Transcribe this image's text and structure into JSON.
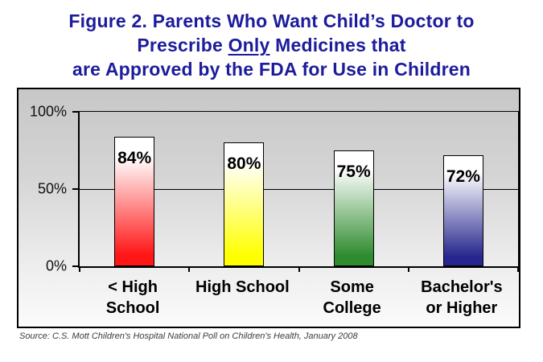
{
  "title": {
    "line1": "Figure 2. Parents Who Want Child’s Doctor to",
    "line2_pre": "Prescribe ",
    "line2_underlined": "Only",
    "line2_post": " Medicines that",
    "line3": "are Approved by the FDA for Use in Children",
    "color": "#1c1c9c"
  },
  "source": "Source: C.S. Mott Children's Hospital National Poll on Children's Health, January 2008",
  "chart_data": {
    "type": "bar",
    "title": "Figure 2. Parents Who Want Child’s Doctor to Prescribe Only Medicines that are Approved by the FDA for Use in Children",
    "categories": [
      "< High School",
      "High School",
      "Some College",
      "Bachelor's or Higher"
    ],
    "category_display": [
      "< High\nSchool",
      "High School",
      "Some\nCollege",
      "Bachelor's\nor Higher"
    ],
    "values": [
      84,
      80,
      75,
      72
    ],
    "data_labels": [
      "84%",
      "80%",
      "75%",
      "72%"
    ],
    "bar_gradient_top": "#ffffff",
    "bar_colors": [
      "#ff1616",
      "#ffff00",
      "#2e8b2e",
      "#26268e"
    ],
    "y_ticks": [
      {
        "label": "100%",
        "value": 100
      },
      {
        "label": "50%",
        "value": 50
      },
      {
        "label": "0%",
        "value": 0
      }
    ],
    "ylim": [
      0,
      100
    ],
    "gridline_values": [
      50
    ],
    "x_tick_positions_pct": [
      0,
      25,
      50,
      75,
      100
    ],
    "legend": "none",
    "plot_background": {
      "top": "#c7c7c7",
      "bottom": "#fbfbfb"
    }
  }
}
